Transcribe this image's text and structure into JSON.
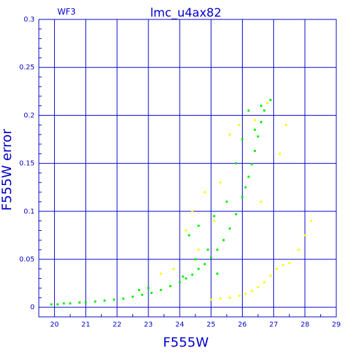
{
  "chart_data": {
    "type": "scatter",
    "title": "lmc_u4ax82",
    "subtitle": "WF3",
    "xlabel": "F555W",
    "ylabel": "F555W error",
    "xlim": [
      19.5,
      29
    ],
    "ylim": [
      -0.01,
      0.3
    ],
    "x_ticks": [
      20,
      21,
      22,
      23,
      24,
      25,
      26,
      27,
      28,
      29
    ],
    "y_ticks": [
      0,
      0.05,
      0.1,
      0.15,
      0.2,
      0.25,
      0.3
    ],
    "y_tick_labels": [
      "0",
      "0.05",
      "0.1",
      "0.15",
      "0.2",
      "0.25",
      "0.3"
    ],
    "grid": true,
    "series": [
      {
        "color": "#00ee00",
        "points": [
          [
            19.9,
            0.003
          ],
          [
            20.1,
            0.003
          ],
          [
            20.3,
            0.004
          ],
          [
            20.5,
            0.004
          ],
          [
            20.8,
            0.005
          ],
          [
            21.0,
            0.005
          ],
          [
            21.3,
            0.006
          ],
          [
            21.6,
            0.007
          ],
          [
            21.9,
            0.008
          ],
          [
            22.2,
            0.009
          ],
          [
            22.5,
            0.011
          ],
          [
            22.8,
            0.013
          ],
          [
            23.1,
            0.015
          ],
          [
            23.4,
            0.018
          ],
          [
            23.7,
            0.022
          ],
          [
            24.0,
            0.026
          ],
          [
            24.2,
            0.03
          ],
          [
            24.4,
            0.034
          ],
          [
            24.6,
            0.04
          ],
          [
            24.8,
            0.045
          ],
          [
            25.0,
            0.052
          ],
          [
            25.2,
            0.06
          ],
          [
            25.4,
            0.07
          ],
          [
            25.6,
            0.082
          ],
          [
            25.8,
            0.097
          ],
          [
            26.0,
            0.115
          ],
          [
            26.1,
            0.125
          ],
          [
            26.2,
            0.136
          ],
          [
            26.3,
            0.149
          ],
          [
            26.4,
            0.163
          ],
          [
            26.5,
            0.178
          ],
          [
            26.6,
            0.193
          ],
          [
            26.7,
            0.205
          ],
          [
            26.8,
            0.213
          ],
          [
            26.9,
            0.216
          ],
          [
            24.3,
            0.075
          ],
          [
            24.6,
            0.085
          ],
          [
            24.9,
            0.06
          ],
          [
            25.5,
            0.11
          ],
          [
            26.0,
            0.175
          ],
          [
            26.2,
            0.205
          ],
          [
            25.2,
            0.035
          ],
          [
            24.5,
            0.05
          ],
          [
            25.8,
            0.15
          ],
          [
            26.4,
            0.185
          ],
          [
            23.0,
            0.02
          ],
          [
            22.7,
            0.018
          ],
          [
            25.1,
            0.095
          ],
          [
            24.1,
            0.032
          ],
          [
            26.6,
            0.21
          ]
        ]
      },
      {
        "color": "#ffff00",
        "points": [
          [
            25.0,
            0.008
          ],
          [
            25.3,
            0.009
          ],
          [
            25.6,
            0.01
          ],
          [
            25.9,
            0.012
          ],
          [
            26.1,
            0.014
          ],
          [
            26.3,
            0.017
          ],
          [
            26.5,
            0.021
          ],
          [
            26.7,
            0.026
          ],
          [
            26.9,
            0.033
          ],
          [
            27.1,
            0.04
          ],
          [
            27.3,
            0.044
          ],
          [
            27.5,
            0.046
          ],
          [
            27.8,
            0.06
          ],
          [
            28.0,
            0.075
          ],
          [
            28.2,
            0.09
          ],
          [
            26.4,
            0.195
          ],
          [
            25.3,
            0.13
          ],
          [
            25.6,
            0.18
          ],
          [
            24.4,
            0.1
          ],
          [
            24.8,
            0.12
          ],
          [
            26.8,
            0.213
          ],
          [
            27.4,
            0.19
          ],
          [
            27.2,
            0.16
          ],
          [
            24.6,
            0.06
          ],
          [
            23.4,
            0.035
          ],
          [
            25.1,
            0.09
          ],
          [
            24.2,
            0.08
          ],
          [
            26.6,
            0.11
          ],
          [
            25.9,
            0.19
          ],
          [
            23.8,
            0.04
          ]
        ]
      }
    ]
  }
}
